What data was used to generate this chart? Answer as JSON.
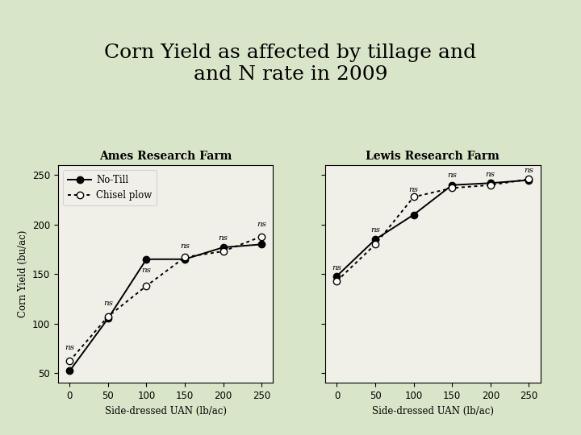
{
  "title": "Corn Yield as affected by tillage and\nand N rate in 2009",
  "title_fontsize": 18,
  "background_color": "#d8e5c8",
  "plot_bg_color": "#f0f0e8",
  "subplot_titles": [
    "Ames Research Farm",
    "Lewis Research Farm"
  ],
  "xlabel": "Side-dressed UAN (lb/ac)",
  "ylabel": "Corn Yield (bu/ac)",
  "x_values": [
    0,
    50,
    100,
    150,
    200,
    250
  ],
  "ames_notill": [
    52,
    105,
    165,
    165,
    177,
    180
  ],
  "ames_chisel": [
    62,
    107,
    138,
    167,
    173,
    188
  ],
  "lewis_notill": [
    148,
    185,
    210,
    240,
    242,
    245
  ],
  "lewis_chisel": [
    143,
    180,
    228,
    237,
    240,
    246
  ],
  "ylim": [
    40,
    260
  ],
  "yticks": [
    50,
    100,
    150,
    200,
    250
  ],
  "xlim": [
    -15,
    265
  ],
  "ns_ames_x": [
    0,
    50,
    100,
    150,
    200,
    250
  ],
  "ns_ames_y": [
    72,
    117,
    150,
    175,
    183,
    197
  ],
  "ns_lewis_x": [
    0,
    50,
    100,
    150,
    200,
    250
  ],
  "ns_lewis_y": [
    153,
    191,
    232,
    246,
    247,
    251
  ]
}
